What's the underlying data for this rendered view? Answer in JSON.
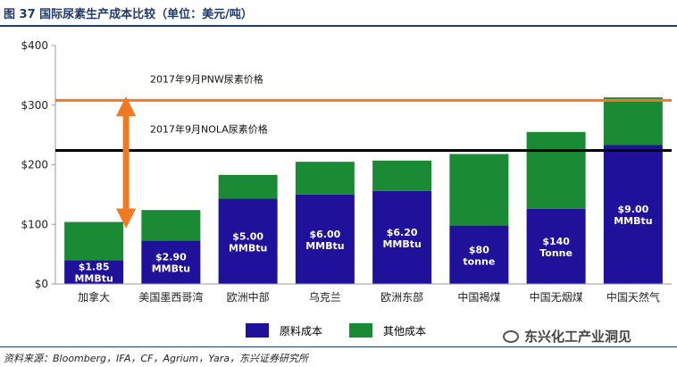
{
  "title": "图 37 国际尿素生产成本比较（单位：美元/吨）",
  "chart_data": {
    "type": "bar",
    "stacked": true,
    "ylim": [
      0,
      400
    ],
    "yticks": [
      0,
      100,
      200,
      300,
      400
    ],
    "ytick_labels": [
      "$0",
      "$100",
      "$200",
      "$300",
      "$400"
    ],
    "categories": [
      "加拿大",
      "美国墨西哥湾",
      "欧洲中部",
      "乌克兰",
      "欧洲东部",
      "中国褐煤",
      "中国无烟煤",
      "中国天然气"
    ],
    "series": [
      {
        "name": "原料成本",
        "values": [
          40,
          73,
          143,
          150,
          156,
          98,
          126,
          233
        ]
      },
      {
        "name": "其他成本",
        "values": [
          64,
          51,
          40,
          55,
          51,
          120,
          129,
          80
        ]
      }
    ],
    "bar_labels": [
      [
        "$1.85",
        "MMBtu"
      ],
      [
        "$2.90",
        "MMBtu"
      ],
      [
        "$5.00",
        "MMBtu"
      ],
      [
        "$6.00",
        "MMBtu"
      ],
      [
        "$6.20",
        "MMBtu"
      ],
      [
        "$80",
        "tonne"
      ],
      [
        "$140",
        "Tonne"
      ],
      [
        "$9.00",
        "MMBtu"
      ]
    ],
    "reference_lines": [
      {
        "label": "2017年9月PNW尿素价格",
        "value": 308
      },
      {
        "label": "2017年9月NOLA尿素价格",
        "value": 224
      }
    ],
    "arrow": {
      "from": 104,
      "to": 304
    }
  },
  "legend": {
    "raw_cost": "原料成本",
    "other_cost": "其他成本"
  },
  "source": "资料来源：Bloomberg，IFA，CF，Agrium，Yara，东兴证券研究所",
  "watermark": "东兴化工产业洞见",
  "colors": {
    "raw": "#1f119a",
    "other": "#1b8a35",
    "pnw_line": "#f07a23",
    "nola_line": "#000000",
    "arrow": "#f07a23",
    "title": "#1f3a6e"
  }
}
